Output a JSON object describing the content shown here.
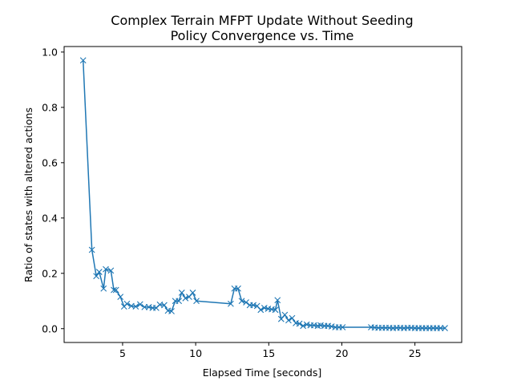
{
  "chart_data": {
    "type": "line",
    "title": [
      "Complex Terrain MFPT Update Without Seeding",
      "Policy Convergence vs. Time"
    ],
    "xlabel": "Elapsed Time [seconds]",
    "ylabel": "Ratio of states with altered actions",
    "xlim": [
      1.0,
      28.2
    ],
    "ylim": [
      -0.05,
      1.02
    ],
    "xticks": [
      5,
      10,
      15,
      20,
      25
    ],
    "yticks": [
      0.0,
      0.2,
      0.4,
      0.6,
      0.8,
      1.0
    ],
    "xtick_labels": [
      "5",
      "10",
      "15",
      "20",
      "25"
    ],
    "ytick_labels": [
      "0.0",
      "0.2",
      "0.4",
      "0.6",
      "0.8",
      "1.0"
    ],
    "grid": false,
    "marker": "x",
    "series": [
      {
        "color": "#1f77b4",
        "x": [
          2.3,
          2.9,
          3.2,
          3.4,
          3.7,
          3.85,
          4.2,
          4.4,
          4.55,
          4.85,
          5.1,
          5.3,
          5.6,
          5.9,
          6.2,
          6.5,
          6.8,
          7.05,
          7.3,
          7.55,
          7.85,
          8.1,
          8.35,
          8.6,
          8.85,
          9.05,
          9.3,
          9.55,
          9.8,
          10.05,
          12.4,
          12.65,
          12.9,
          13.15,
          13.45,
          13.7,
          13.95,
          14.2,
          14.45,
          14.7,
          14.95,
          15.2,
          15.45,
          15.6,
          15.85,
          16.1,
          16.35,
          16.6,
          16.85,
          17.1,
          17.35,
          17.6,
          17.85,
          18.1,
          18.35,
          18.55,
          18.8,
          19.05,
          19.3,
          19.55,
          19.8,
          20.05,
          22.0,
          22.25,
          22.5,
          22.75,
          23.0,
          23.25,
          23.5,
          23.75,
          24.0,
          24.25,
          24.5,
          24.75,
          25.0,
          25.25,
          25.5,
          25.75,
          26.0,
          26.25,
          26.5,
          26.75,
          27.05
        ],
        "y": [
          0.97,
          0.285,
          0.19,
          0.205,
          0.145,
          0.215,
          0.21,
          0.14,
          0.14,
          0.115,
          0.08,
          0.09,
          0.082,
          0.08,
          0.088,
          0.078,
          0.078,
          0.075,
          0.075,
          0.087,
          0.085,
          0.065,
          0.063,
          0.1,
          0.1,
          0.13,
          0.11,
          0.115,
          0.13,
          0.1,
          0.09,
          0.145,
          0.145,
          0.1,
          0.095,
          0.085,
          0.085,
          0.082,
          0.068,
          0.075,
          0.072,
          0.07,
          0.068,
          0.103,
          0.035,
          0.05,
          0.03,
          0.038,
          0.02,
          0.018,
          0.01,
          0.015,
          0.012,
          0.012,
          0.01,
          0.012,
          0.01,
          0.01,
          0.008,
          0.005,
          0.005,
          0.005,
          0.005,
          0.004,
          0.003,
          0.003,
          0.003,
          0.003,
          0.002,
          0.003,
          0.003,
          0.002,
          0.003,
          0.003,
          0.002,
          0.002,
          0.002,
          0.002,
          0.002,
          0.002,
          0.002,
          0.002,
          0.002
        ]
      }
    ]
  }
}
